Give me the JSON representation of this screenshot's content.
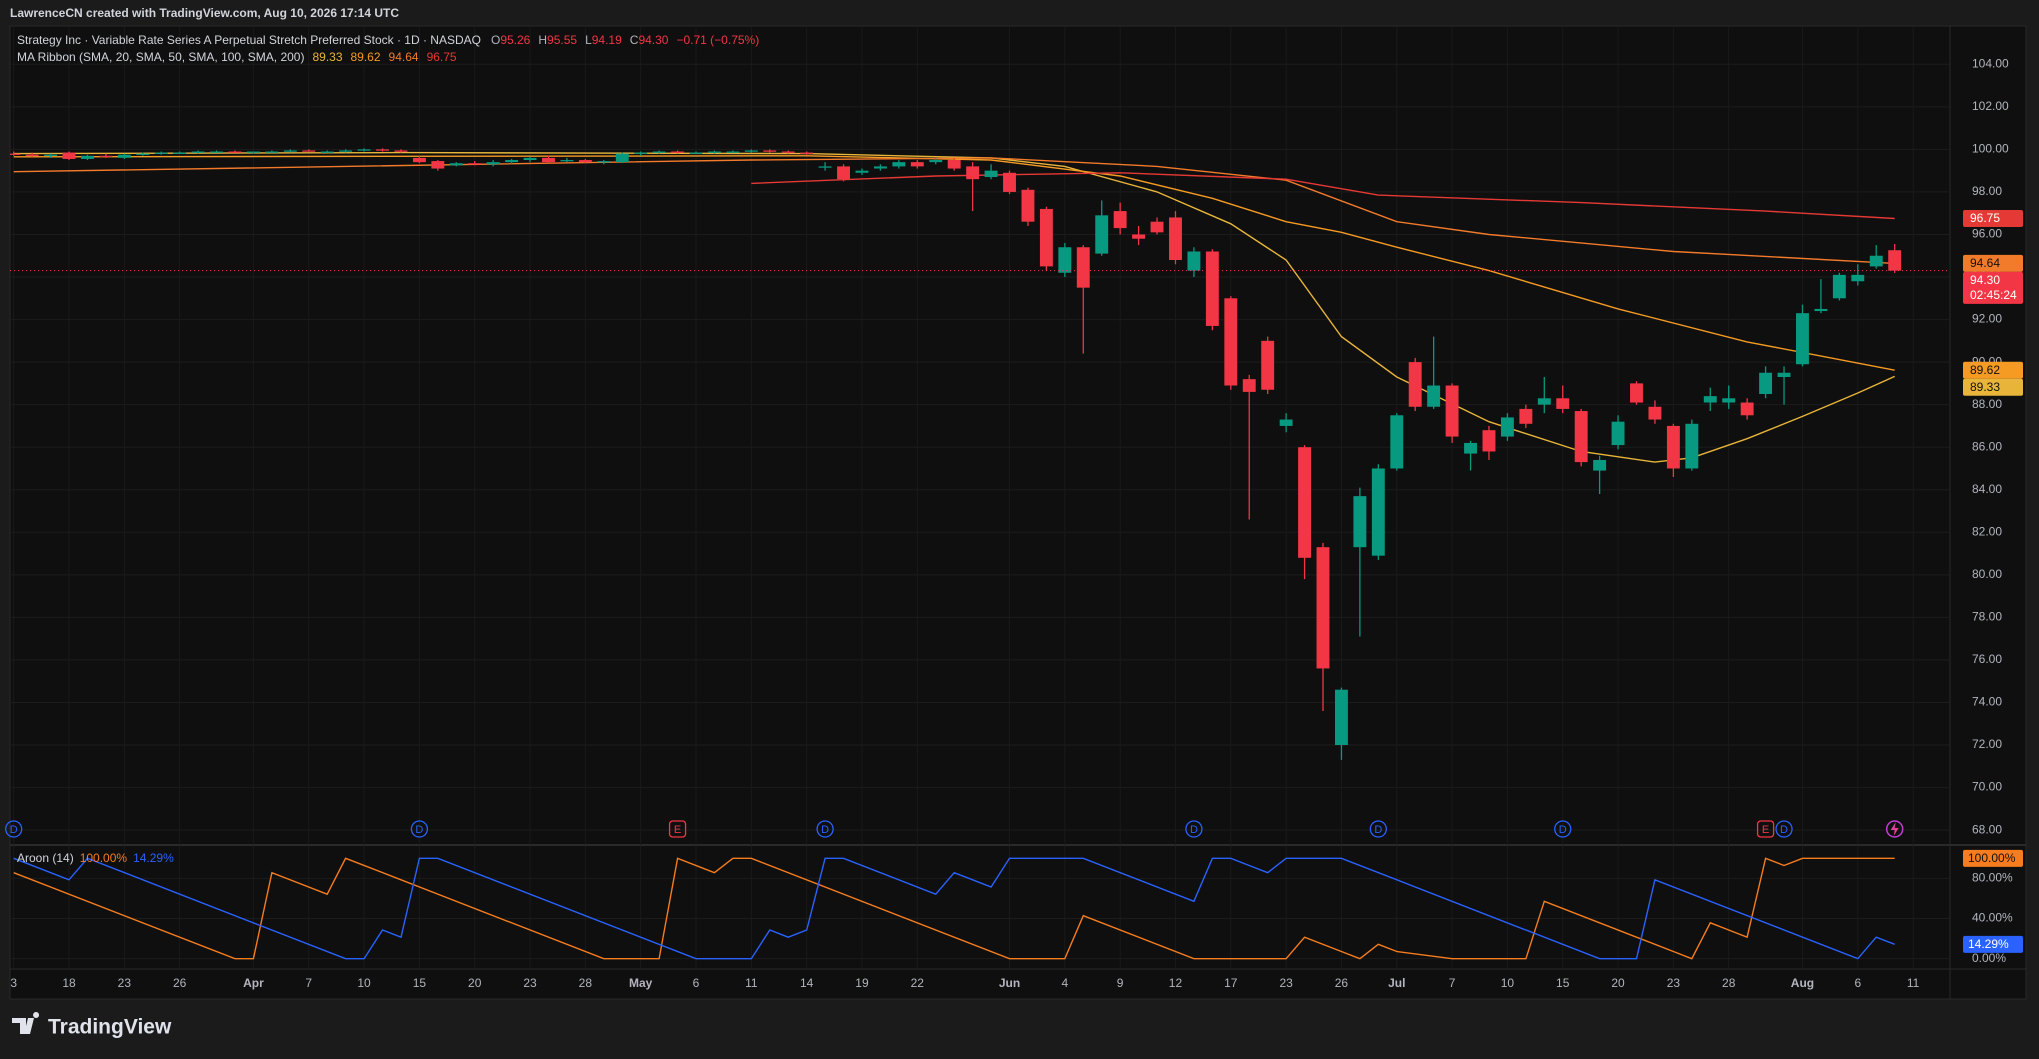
{
  "header": "LawrenceCN created with TradingView.com, Aug 10, 2026 17:14 UTC",
  "footer": {
    "brand": "TradingView"
  },
  "chart_data": [
    {
      "type": "candlestick",
      "title": "Strategy Inc · Variable Rate Series A Perpetual Stretch Preferred Stock · 1D · NASDAQ",
      "ohlc_labels": [
        {
          "key": "O",
          "value": "95.26"
        },
        {
          "key": "H",
          "value": "95.55"
        },
        {
          "key": "L",
          "value": "94.19"
        },
        {
          "key": "C",
          "value": "94.30"
        }
      ],
      "change_label": "−0.71 (−0.75%)",
      "last_price_label": "94.30",
      "countdown": "02:45:24",
      "up_color": "#089981",
      "down_color": "#f23645",
      "open": [
        99.8,
        99.75,
        99.7,
        99.85,
        99.55,
        99.7,
        99.6,
        99.75,
        99.8,
        99.85,
        99.85,
        99.9,
        99.9,
        99.85,
        99.9,
        99.9,
        99.95,
        99.9,
        99.9,
        99.95,
        100.0,
        99.95,
        99.6,
        99.45,
        99.25,
        99.35,
        99.3,
        99.4,
        99.5,
        99.6,
        99.45,
        99.5,
        99.4,
        99.4,
        99.8,
        99.85,
        99.9,
        99.85,
        99.85,
        99.9,
        99.9,
        99.95,
        99.9,
        99.85,
        99.2,
        99.2,
        98.9,
        99.1,
        99.2,
        99.4,
        99.4,
        99.5,
        99.2,
        98.7,
        98.9,
        98.1,
        97.2,
        94.2,
        95.4,
        95.1,
        97.1,
        96.0,
        96.6,
        96.8,
        94.3,
        95.2,
        93.0,
        89.2,
        91.0,
        87.0,
        86.0,
        81.3,
        72.0,
        81.3,
        80.9,
        85.0,
        90.0,
        87.9,
        88.9,
        85.7,
        86.8,
        86.5,
        87.8,
        88.0,
        88.3,
        87.7,
        84.9,
        86.1,
        89.0,
        87.9,
        87.0,
        85.0,
        88.1,
        88.1,
        88.1,
        88.5,
        89.3,
        89.9,
        92.4,
        93.0,
        93.8,
        94.5,
        95.26
      ],
      "high": [
        99.9,
        99.85,
        99.8,
        99.9,
        99.75,
        99.8,
        99.8,
        99.85,
        99.9,
        99.9,
        99.95,
        99.95,
        99.95,
        99.9,
        99.95,
        100.0,
        100.0,
        99.95,
        100.0,
        100.05,
        100.05,
        100.0,
        99.7,
        99.5,
        99.4,
        99.45,
        99.5,
        99.55,
        99.65,
        99.7,
        99.6,
        99.55,
        99.5,
        99.85,
        99.9,
        99.95,
        99.95,
        99.9,
        99.95,
        99.95,
        100.0,
        100.0,
        99.95,
        99.9,
        99.4,
        99.3,
        99.1,
        99.3,
        99.5,
        99.5,
        99.6,
        99.6,
        99.4,
        99.3,
        99.0,
        98.2,
        97.3,
        95.6,
        95.5,
        97.6,
        97.5,
        96.4,
        96.8,
        97.1,
        95.4,
        95.3,
        93.1,
        89.4,
        91.2,
        87.6,
        86.1,
        81.5,
        74.7,
        84.1,
        85.2,
        87.6,
        90.2,
        91.2,
        89.0,
        86.3,
        87.0,
        87.6,
        88.0,
        89.3,
        88.9,
        87.8,
        85.6,
        87.5,
        89.1,
        88.2,
        87.1,
        87.3,
        88.8,
        88.9,
        88.3,
        89.8,
        89.8,
        92.7,
        93.9,
        94.2,
        94.6,
        95.5,
        95.55
      ],
      "low": [
        99.7,
        99.65,
        99.6,
        99.5,
        99.5,
        99.6,
        99.55,
        99.7,
        99.75,
        99.8,
        99.8,
        99.85,
        99.85,
        99.8,
        99.85,
        99.85,
        99.9,
        99.85,
        99.85,
        99.9,
        99.9,
        99.85,
        99.35,
        99.0,
        99.2,
        99.25,
        99.2,
        99.3,
        99.4,
        99.35,
        99.4,
        99.35,
        99.3,
        99.35,
        99.7,
        99.8,
        99.8,
        99.8,
        99.8,
        99.85,
        99.85,
        99.85,
        99.8,
        99.75,
        99.0,
        98.5,
        98.8,
        99.0,
        99.1,
        99.1,
        99.3,
        99.0,
        97.1,
        98.6,
        97.9,
        96.4,
        94.3,
        94.0,
        90.4,
        95.0,
        96.0,
        95.5,
        96.0,
        94.6,
        94.0,
        91.5,
        88.7,
        82.6,
        88.5,
        86.7,
        79.8,
        73.6,
        71.3,
        77.1,
        80.7,
        84.9,
        87.7,
        87.8,
        86.2,
        84.9,
        85.4,
        86.3,
        86.9,
        87.6,
        87.6,
        85.1,
        83.8,
        85.9,
        88.0,
        87.1,
        84.6,
        84.9,
        87.7,
        87.8,
        87.3,
        88.3,
        88.0,
        89.8,
        92.3,
        92.9,
        93.6,
        94.4,
        94.19
      ],
      "close": [
        99.75,
        99.7,
        99.75,
        99.55,
        99.7,
        99.65,
        99.75,
        99.8,
        99.85,
        99.85,
        99.9,
        99.9,
        99.85,
        99.9,
        99.9,
        99.95,
        99.9,
        99.9,
        99.95,
        100.0,
        99.95,
        99.9,
        99.4,
        99.1,
        99.35,
        99.3,
        99.4,
        99.5,
        99.6,
        99.4,
        99.5,
        99.4,
        99.45,
        99.8,
        99.85,
        99.9,
        99.85,
        99.85,
        99.9,
        99.9,
        99.95,
        99.9,
        99.85,
        99.8,
        99.2,
        98.6,
        99.0,
        99.2,
        99.4,
        99.2,
        99.5,
        99.1,
        98.6,
        99.0,
        98.0,
        96.6,
        94.5,
        95.4,
        93.5,
        96.9,
        96.3,
        95.8,
        96.1,
        94.8,
        95.2,
        91.7,
        88.9,
        88.6,
        88.7,
        87.3,
        80.8,
        75.6,
        74.6,
        83.7,
        85.0,
        87.5,
        87.9,
        88.9,
        86.5,
        86.2,
        85.8,
        87.4,
        87.1,
        88.3,
        87.8,
        85.3,
        85.4,
        87.2,
        88.1,
        87.3,
        85.0,
        87.1,
        88.4,
        88.3,
        87.5,
        89.5,
        89.5,
        92.3,
        92.5,
        94.1,
        94.1,
        95.0,
        94.3
      ],
      "xlim": [
        -0.2,
        105
      ],
      "xticks": [
        {
          "value": 0,
          "label": "3"
        },
        {
          "value": 3,
          "label": "18"
        },
        {
          "value": 6,
          "label": "23"
        },
        {
          "value": 9,
          "label": "26"
        },
        {
          "value": 13,
          "label": "Apr"
        },
        {
          "value": 16,
          "label": "7"
        },
        {
          "value": 19,
          "label": "10"
        },
        {
          "value": 22,
          "label": "15"
        },
        {
          "value": 25,
          "label": "20"
        },
        {
          "value": 28,
          "label": "23"
        },
        {
          "value": 31,
          "label": "28"
        },
        {
          "value": 34,
          "label": "May"
        },
        {
          "value": 37,
          "label": "6"
        },
        {
          "value": 40,
          "label": "11"
        },
        {
          "value": 43,
          "label": "14"
        },
        {
          "value": 46,
          "label": "19"
        },
        {
          "value": 49,
          "label": "22"
        },
        {
          "value": 54,
          "label": "Jun"
        },
        {
          "value": 57,
          "label": "4"
        },
        {
          "value": 60,
          "label": "9"
        },
        {
          "value": 63,
          "label": "12"
        },
        {
          "value": 66,
          "label": "17"
        },
        {
          "value": 69,
          "label": "23"
        },
        {
          "value": 72,
          "label": "26"
        },
        {
          "value": 75,
          "label": "Jul"
        },
        {
          "value": 78,
          "label": "7"
        },
        {
          "value": 81,
          "label": "10"
        },
        {
          "value": 84,
          "label": "15"
        },
        {
          "value": 87,
          "label": "20"
        },
        {
          "value": 90,
          "label": "23"
        },
        {
          "value": 93,
          "label": "28"
        },
        {
          "value": 97,
          "label": "Aug"
        },
        {
          "value": 100,
          "label": "6"
        },
        {
          "value": 103,
          "label": "11"
        }
      ],
      "ylim": [
        67.3,
        105.8
      ],
      "yticks": [
        {
          "value": 68,
          "label": "68.00"
        },
        {
          "value": 70,
          "label": "70.00"
        },
        {
          "value": 72,
          "label": "72.00"
        },
        {
          "value": 74,
          "label": "74.00"
        },
        {
          "value": 76,
          "label": "76.00"
        },
        {
          "value": 78,
          "label": "78.00"
        },
        {
          "value": 80,
          "label": "80.00"
        },
        {
          "value": 82,
          "label": "82.00"
        },
        {
          "value": 84,
          "label": "84.00"
        },
        {
          "value": 86,
          "label": "86.00"
        },
        {
          "value": 88,
          "label": "88.00"
        },
        {
          "value": 90,
          "label": "90.00"
        },
        {
          "value": 92,
          "label": "92.00"
        },
        {
          "value": 94,
          "label": "94.00"
        },
        {
          "value": 96,
          "label": "96.00"
        },
        {
          "value": 98,
          "label": "98.00"
        },
        {
          "value": 100,
          "label": "100.00"
        },
        {
          "value": 102,
          "label": "102.00"
        },
        {
          "value": 104,
          "label": "104.00"
        }
      ],
      "grid": true,
      "events": [
        "D",
        "D",
        "E",
        "D",
        "D",
        "D",
        "D",
        "E",
        "D"
      ],
      "overlay": {
        "name": "MA Ribbon (SMA, 20, SMA, 50, SMA, 100, SMA, 200)",
        "series": [
          {
            "color": "#e8b53a",
            "x": [
              0,
              21,
              43,
              53,
              57,
              62,
              66,
              69,
              72,
              75,
              80,
              85,
              89,
              91,
              94,
              97,
              100,
              102
            ],
            "values": [
              99.8,
              99.85,
              99.8,
              99.6,
              99.2,
              98.0,
              96.5,
              94.8,
              91.2,
              89.3,
              87.2,
              85.8,
              85.3,
              85.5,
              86.4,
              87.45,
              88.55,
              89.33
            ]
          },
          {
            "color": "#f59a23",
            "x": [
              0,
              43,
              53,
              60,
              65,
              69,
              72,
              75,
              80,
              87,
              94,
              102
            ],
            "values": [
              99.65,
              99.7,
              99.5,
              98.75,
              97.7,
              96.6,
              96.1,
              95.4,
              94.3,
              92.5,
              90.95,
              89.62
            ]
          },
          {
            "color": "#f27a2b",
            "x": [
              0,
              40,
              53,
              62,
              69,
              75,
              80,
              90,
              102
            ],
            "values": [
              98.95,
              99.5,
              99.6,
              99.2,
              98.55,
              96.6,
              96.0,
              95.2,
              94.64
            ]
          },
          {
            "color": "#e53935",
            "x": [
              40,
              50,
              60,
              69,
              74,
              85,
              95,
              102
            ],
            "values": [
              98.4,
              98.75,
              98.9,
              98.6,
              97.85,
              97.5,
              97.1,
              96.75
            ]
          }
        ]
      }
    },
    {
      "type": "line",
      "title": "Aroon (14)",
      "xlim": [
        -0.2,
        105
      ],
      "ylim": [
        -10.3,
        112.3
      ],
      "yticks": [
        {
          "value": 0,
          "label": "0.00%"
        },
        {
          "value": 40,
          "label": "40.00%"
        },
        {
          "value": 80,
          "label": "80.00%"
        }
      ],
      "series": [
        {
          "color": "#f57c1f",
          "last_label": "100.00%",
          "x": [
            0,
            12,
            13,
            14,
            17,
            18,
            21,
            32,
            35,
            36,
            38,
            39,
            40,
            54,
            57,
            58,
            64,
            69,
            70,
            72,
            73,
            74,
            75,
            78,
            82,
            83,
            88,
            89,
            90,
            91,
            92,
            93,
            94,
            95,
            96,
            97,
            102
          ],
          "values": [
            85.71,
            0,
            0,
            85.71,
            64.29,
            100,
            78.57,
            0,
            0,
            100,
            85.71,
            100,
            100,
            0,
            0,
            42.86,
            0,
            0,
            21.43,
            7.14,
            0,
            14.29,
            7.14,
            0,
            0,
            57.14,
            21.43,
            14.29,
            7.14,
            0,
            35.71,
            28.57,
            21.43,
            100,
            92.86,
            100,
            100
          ]
        },
        {
          "color": "#2962ff",
          "last_label": "14.29%",
          "x": [
            0,
            3,
            4,
            18,
            19,
            20,
            21,
            22,
            23,
            37,
            40,
            41,
            42,
            43,
            44,
            45,
            50,
            51,
            52,
            53,
            54,
            58,
            64,
            65,
            66,
            67,
            68,
            69,
            72,
            86,
            88,
            89,
            100,
            101,
            102
          ],
          "values": [
            100,
            78.57,
            100,
            0,
            0,
            28.57,
            21.43,
            100,
            100,
            0,
            0,
            28.57,
            21.43,
            28.57,
            100,
            100,
            64.29,
            85.71,
            78.57,
            71.43,
            100,
            100,
            57.14,
            100,
            100,
            92.86,
            85.71,
            100,
            100,
            0,
            0,
            78.57,
            0,
            21.43,
            14.29
          ]
        }
      ]
    }
  ]
}
